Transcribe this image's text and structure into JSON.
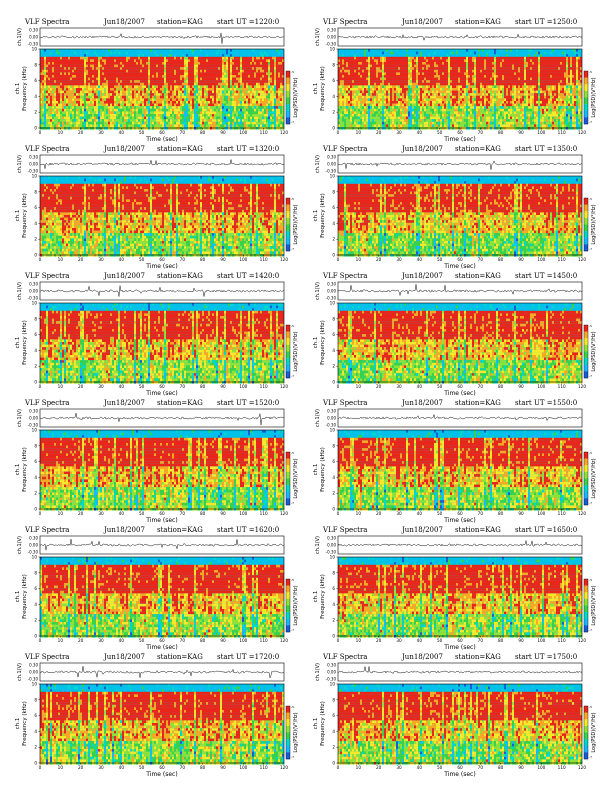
{
  "chart_data": [
    {
      "type": "heatmap",
      "title": "VLF Spectra",
      "date": "Jun18/2007",
      "station": "station=KAG",
      "start": "start  UT  =1220:0",
      "channel_label": "ch.1(V)",
      "channel_ticks": [
        "0.30",
        "0.00",
        "-0.30"
      ],
      "ylabel": "ch.1\nFrequency  (kHz)",
      "ylabel_top": "ch.1",
      "ylabel_bottom": "Frequency  (kHz)",
      "xlabel": "Time  (sec)",
      "xlim": [
        0,
        120
      ],
      "ylim": [
        0,
        10
      ],
      "xticks": [
        "0",
        "10",
        "20",
        "30",
        "40",
        "50",
        "60",
        "70",
        "80",
        "90",
        "100",
        "110",
        "120"
      ],
      "yticks": [
        "0",
        "2",
        "4",
        "6",
        "8",
        "10"
      ],
      "colorbar_label": "Log(PSD)(V²/Hz)",
      "colorbar_ticks": [
        "-5",
        "-7"
      ],
      "colors": {
        "high": "#e8261b",
        "mid": "#f7e92a",
        "low": "#39d24a",
        "min": "#18b8ff",
        "bg": "#00c2e8"
      }
    },
    {
      "type": "heatmap",
      "title": "VLF Spectra",
      "date": "Jun18/2007",
      "station": "station=KAG",
      "start": "start  UT  =1250:0",
      "channel_label": "ch.1(V)",
      "channel_ticks": [
        "0.30",
        "0.00",
        "-0.30"
      ],
      "ylabel_top": "ch.1",
      "ylabel_bottom": "Frequency  (kHz)",
      "xlabel": "Time  (sec)",
      "xlim": [
        0,
        120
      ],
      "ylim": [
        0,
        10
      ],
      "xticks": [
        "0",
        "10",
        "20",
        "30",
        "40",
        "50",
        "60",
        "70",
        "80",
        "90",
        "100",
        "110",
        "120"
      ],
      "yticks": [
        "0",
        "2",
        "4",
        "6",
        "8",
        "10"
      ],
      "colorbar_label": "Log(PSD)(V²/Hz)",
      "colorbar_ticks": [
        "-5",
        "-7"
      ]
    },
    {
      "type": "heatmap",
      "title": "VLF Spectra",
      "date": "Jun18/2007",
      "station": "station=KAG",
      "start": "start  UT  =1320:0",
      "channel_label": "ch.1(V)",
      "channel_ticks": [
        "0.30",
        "0.00",
        "-0.30"
      ],
      "ylabel_top": "ch.1",
      "ylabel_bottom": "Frequency  (kHz)",
      "xlabel": "Time  (sec)",
      "xlim": [
        0,
        120
      ],
      "ylim": [
        0,
        10
      ],
      "xticks": [
        "0",
        "10",
        "20",
        "30",
        "40",
        "50",
        "60",
        "70",
        "80",
        "90",
        "100",
        "110",
        "120"
      ],
      "yticks": [
        "0",
        "2",
        "4",
        "6",
        "8",
        "10"
      ],
      "colorbar_label": "Log(PSD)(V²/Hz)",
      "colorbar_ticks": [
        "-5",
        "-7"
      ]
    },
    {
      "type": "heatmap",
      "title": "VLF Spectra",
      "date": "Jun18/2007",
      "station": "station=KAG",
      "start": "start  UT  =1350:0",
      "channel_label": "ch.1(V)",
      "channel_ticks": [
        "0.30",
        "0.00",
        "-0.30"
      ],
      "ylabel_top": "ch.1",
      "ylabel_bottom": "Frequency  (kHz)",
      "xlabel": "Time  (sec)",
      "xlim": [
        0,
        120
      ],
      "ylim": [
        0,
        10
      ],
      "xticks": [
        "0",
        "10",
        "20",
        "30",
        "40",
        "50",
        "60",
        "70",
        "80",
        "90",
        "100",
        "110",
        "120"
      ],
      "yticks": [
        "0",
        "2",
        "4",
        "6",
        "8",
        "10"
      ],
      "colorbar_label": "Log(PSD)(V²/Hz)",
      "colorbar_ticks": [
        "-5",
        "-7"
      ]
    },
    {
      "type": "heatmap",
      "title": "VLF Spectra",
      "date": "Jun18/2007",
      "station": "station=KAG",
      "start": "start  UT  =1420:0",
      "channel_label": "ch.1(V)",
      "channel_ticks": [
        "0.30",
        "0.00",
        "-0.30"
      ],
      "ylabel_top": "ch.1",
      "ylabel_bottom": "Frequency  (kHz)",
      "xlabel": "Time  (sec)",
      "xlim": [
        0,
        120
      ],
      "ylim": [
        0,
        10
      ],
      "xticks": [
        "0",
        "10",
        "20",
        "30",
        "40",
        "50",
        "60",
        "70",
        "80",
        "90",
        "100",
        "110",
        "120"
      ],
      "yticks": [
        "0",
        "2",
        "4",
        "6",
        "8",
        "10"
      ],
      "colorbar_label": "Log(PSD)(V²/Hz)",
      "colorbar_ticks": [
        "-5",
        "-7"
      ]
    },
    {
      "type": "heatmap",
      "title": "VLF Spectra",
      "date": "Jun18/2007",
      "station": "station=KAG",
      "start": "start  UT  =1450:0",
      "channel_label": "ch.1(V)",
      "channel_ticks": [
        "0.30",
        "0.00",
        "-0.30"
      ],
      "ylabel_top": "ch.1",
      "ylabel_bottom": "Frequency  (kHz)",
      "xlabel": "Time  (sec)",
      "xlim": [
        0,
        120
      ],
      "ylim": [
        0,
        10
      ],
      "xticks": [
        "0",
        "10",
        "20",
        "30",
        "40",
        "50",
        "60",
        "70",
        "80",
        "90",
        "100",
        "110",
        "120"
      ],
      "yticks": [
        "0",
        "2",
        "4",
        "6",
        "8",
        "10"
      ],
      "colorbar_label": "Log(PSD)(V²/Hz)",
      "colorbar_ticks": [
        "-5",
        "-7"
      ]
    },
    {
      "type": "heatmap",
      "title": "VLF Spectra",
      "date": "Jun18/2007",
      "station": "station=KAG",
      "start": "start  UT  =1520:0",
      "channel_label": "ch.1(V)",
      "channel_ticks": [
        "0.30",
        "0.00",
        "-0.30"
      ],
      "ylabel_top": "ch.1",
      "ylabel_bottom": "Frequency  (kHz)",
      "xlabel": "Time  (sec)",
      "xlim": [
        0,
        120
      ],
      "ylim": [
        0,
        10
      ],
      "xticks": [
        "0",
        "10",
        "20",
        "30",
        "40",
        "50",
        "60",
        "70",
        "80",
        "90",
        "100",
        "110",
        "120"
      ],
      "yticks": [
        "0",
        "2",
        "4",
        "6",
        "8",
        "10"
      ],
      "colorbar_label": "Log(PSD)(V²/Hz)",
      "colorbar_ticks": [
        "-5",
        "-7"
      ]
    },
    {
      "type": "heatmap",
      "title": "VLF Spectra",
      "date": "Jun18/2007",
      "station": "station=KAG",
      "start": "start  UT  =1550:0",
      "channel_label": "ch.1(V)",
      "channel_ticks": [
        "0.30",
        "0.00",
        "-0.30"
      ],
      "ylabel_top": "ch.1",
      "ylabel_bottom": "Frequency  (kHz)",
      "xlabel": "Time  (sec)",
      "xlim": [
        0,
        120
      ],
      "ylim": [
        0,
        10
      ],
      "xticks": [
        "0",
        "10",
        "20",
        "30",
        "40",
        "50",
        "60",
        "70",
        "80",
        "90",
        "100",
        "110",
        "120"
      ],
      "yticks": [
        "0",
        "2",
        "4",
        "6",
        "8",
        "10"
      ],
      "colorbar_label": "Log(PSD)(V²/Hz)",
      "colorbar_ticks": [
        "-5",
        "-7"
      ]
    },
    {
      "type": "heatmap",
      "title": "VLF Spectra",
      "date": "Jun18/2007",
      "station": "station=KAG",
      "start": "start  UT  =1620:0",
      "channel_label": "ch.1(V)",
      "channel_ticks": [
        "0.30",
        "0.00",
        "-0.30"
      ],
      "ylabel_top": "ch.1",
      "ylabel_bottom": "Frequency  (kHz)",
      "xlabel": "Time  (sec)",
      "xlim": [
        0,
        120
      ],
      "ylim": [
        0,
        10
      ],
      "xticks": [
        "0",
        "10",
        "20",
        "30",
        "40",
        "50",
        "60",
        "70",
        "80",
        "90",
        "100",
        "110",
        "120"
      ],
      "yticks": [
        "0",
        "2",
        "4",
        "6",
        "8",
        "10"
      ],
      "colorbar_label": "Log(PSD)(V²/Hz)",
      "colorbar_ticks": [
        "-5",
        "-7"
      ]
    },
    {
      "type": "heatmap",
      "title": "VLF Spectra",
      "date": "Jun18/2007",
      "station": "station=KAG",
      "start": "start  UT  =1650:0",
      "channel_label": "ch.1(V)",
      "channel_ticks": [
        "0.30",
        "0.00",
        "-0.30"
      ],
      "ylabel_top": "ch.1",
      "ylabel_bottom": "Frequency  (kHz)",
      "xlabel": "Time  (sec)",
      "xlim": [
        0,
        120
      ],
      "ylim": [
        0,
        10
      ],
      "xticks": [
        "0",
        "10",
        "20",
        "30",
        "40",
        "50",
        "60",
        "70",
        "80",
        "90",
        "100",
        "110",
        "120"
      ],
      "yticks": [
        "0",
        "2",
        "4",
        "6",
        "8",
        "10"
      ],
      "colorbar_label": "Log(PSD)(V²/Hz)",
      "colorbar_ticks": [
        "-5",
        "-7"
      ]
    },
    {
      "type": "heatmap",
      "title": "VLF Spectra",
      "date": "Jun18/2007",
      "station": "station=KAG",
      "start": "start  UT  =1720:0",
      "channel_label": "ch.1(V)",
      "channel_ticks": [
        "0.30",
        "0.00",
        "-0.30"
      ],
      "ylabel_top": "ch.1",
      "ylabel_bottom": "Frequency  (kHz)",
      "xlabel": "Time  (sec)",
      "xlim": [
        0,
        120
      ],
      "ylim": [
        0,
        10
      ],
      "xticks": [
        "0",
        "10",
        "20",
        "30",
        "40",
        "50",
        "60",
        "70",
        "80",
        "90",
        "100",
        "110",
        "120"
      ],
      "yticks": [
        "0",
        "2",
        "4",
        "6",
        "8",
        "10"
      ],
      "colorbar_label": "Log(PSD)(V²/Hz)",
      "colorbar_ticks": [
        "-5",
        "-7"
      ]
    },
    {
      "type": "heatmap",
      "title": "VLF Spectra",
      "date": "Jun18/2007",
      "station": "station=KAG",
      "start": "start  UT  =1750:0",
      "channel_label": "ch.1(V)",
      "channel_ticks": [
        "0.30",
        "0.00",
        "-0.30"
      ],
      "ylabel_top": "ch.1",
      "ylabel_bottom": "Frequency  (kHz)",
      "xlabel": "Time  (sec)",
      "xlim": [
        0,
        120
      ],
      "ylim": [
        0,
        10
      ],
      "xticks": [
        "0",
        "10",
        "20",
        "30",
        "40",
        "50",
        "60",
        "70",
        "80",
        "90",
        "100",
        "110",
        "120"
      ],
      "yticks": [
        "0",
        "2",
        "4",
        "6",
        "8",
        "10"
      ],
      "colorbar_label": "Log(PSD)(V²/Hz)",
      "colorbar_ticks": [
        "-5",
        "-7"
      ]
    }
  ]
}
